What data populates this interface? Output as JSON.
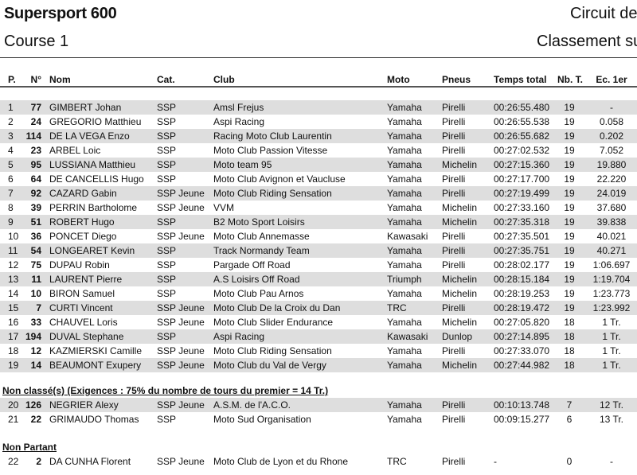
{
  "header": {
    "title": "Supersport 600",
    "circuit": "Circuit de",
    "course": "Course 1",
    "classement": "Classement sur"
  },
  "columns": [
    "P.",
    "N°",
    "Nom",
    "Cat.",
    "Club",
    "Moto",
    "Pneus",
    "Temps total",
    "Nb. T.",
    "Ec. 1er"
  ],
  "classified": [
    [
      "1",
      "77",
      "GIMBERT Johan",
      "SSP",
      "Amsl Frejus",
      "Yamaha",
      "Pirelli",
      "00:26:55.480",
      "19",
      "-"
    ],
    [
      "2",
      "24",
      "GREGORIO Matthieu",
      "SSP",
      "Aspi Racing",
      "Yamaha",
      "Pirelli",
      "00:26:55.538",
      "19",
      "0.058"
    ],
    [
      "3",
      "114",
      "DE LA VEGA Enzo",
      "SSP",
      "Racing Moto Club Laurentin",
      "Yamaha",
      "Pirelli",
      "00:26:55.682",
      "19",
      "0.202"
    ],
    [
      "4",
      "23",
      "ARBEL Loic",
      "SSP",
      "Moto Club Passion Vitesse",
      "Yamaha",
      "Pirelli",
      "00:27:02.532",
      "19",
      "7.052"
    ],
    [
      "5",
      "95",
      "LUSSIANA Matthieu",
      "SSP",
      "Moto team 95",
      "Yamaha",
      "Michelin",
      "00:27:15.360",
      "19",
      "19.880"
    ],
    [
      "6",
      "64",
      "DE CANCELLIS Hugo",
      "SSP",
      "Moto Club Avignon et Vaucluse",
      "Yamaha",
      "Pirelli",
      "00:27:17.700",
      "19",
      "22.220"
    ],
    [
      "7",
      "92",
      "CAZARD Gabin",
      "SSP Jeune",
      "Moto Club Riding Sensation",
      "Yamaha",
      "Pirelli",
      "00:27:19.499",
      "19",
      "24.019"
    ],
    [
      "8",
      "39",
      "PERRIN Bartholome",
      "SSP Jeune",
      "VVM",
      "Yamaha",
      "Michelin",
      "00:27:33.160",
      "19",
      "37.680"
    ],
    [
      "9",
      "51",
      "ROBERT Hugo",
      "SSP",
      "B2 Moto Sport Loisirs",
      "Yamaha",
      "Michelin",
      "00:27:35.318",
      "19",
      "39.838"
    ],
    [
      "10",
      "36",
      "PONCET Diego",
      "SSP Jeune",
      "Moto Club Annemasse",
      "Kawasaki",
      "Pirelli",
      "00:27:35.501",
      "19",
      "40.021"
    ],
    [
      "11",
      "54",
      "LONGEARET Kevin",
      "SSP",
      "Track Normandy Team",
      "Yamaha",
      "Pirelli",
      "00:27:35.751",
      "19",
      "40.271"
    ],
    [
      "12",
      "75",
      "DUPAU Robin",
      "SSP",
      "Pargade Off Road",
      "Yamaha",
      "Pirelli",
      "00:28:02.177",
      "19",
      "1:06.697"
    ],
    [
      "13",
      "11",
      "LAURENT Pierre",
      "SSP",
      "A.S Loisirs Off Road",
      "Triumph",
      "Michelin",
      "00:28:15.184",
      "19",
      "1:19.704"
    ],
    [
      "14",
      "10",
      "BIRON Samuel",
      "SSP",
      "Moto Club Pau Arnos",
      "Yamaha",
      "Michelin",
      "00:28:19.253",
      "19",
      "1:23.773"
    ],
    [
      "15",
      "7",
      "CURTI Vincent",
      "SSP Jeune",
      "Moto Club De la Croix du Dan",
      "TRC",
      "Pirelli",
      "00:28:19.472",
      "19",
      "1:23.992"
    ],
    [
      "16",
      "33",
      "CHAUVEL Loris",
      "SSP Jeune",
      "Moto Club Slider Endurance",
      "Yamaha",
      "Michelin",
      "00:27:05.820",
      "18",
      "1 Tr."
    ],
    [
      "17",
      "194",
      "DUVAL Stephane",
      "SSP",
      "Aspi Racing",
      "Kawasaki",
      "Dunlop",
      "00:27:14.895",
      "18",
      "1 Tr."
    ],
    [
      "18",
      "12",
      "KAZMIERSKI Camille",
      "SSP Jeune",
      "Moto Club Riding Sensation",
      "Yamaha",
      "Pirelli",
      "00:27:33.070",
      "18",
      "1 Tr."
    ],
    [
      "19",
      "14",
      "BEAUMONT Exupery",
      "SSP Jeune",
      "Moto Club du Val de Vergy",
      "Yamaha",
      "Michelin",
      "00:27:44.982",
      "18",
      "1 Tr."
    ]
  ],
  "non_classes": {
    "title": "Non classé(s) (Exigences : 75% du nombre de tours du premier = 14 Tr.)",
    "rows": [
      [
        "20",
        "126",
        "NEGRIER Alexy",
        "SSP Jeune",
        "A.S.M. de l'A.C.O.",
        "Yamaha",
        "Pirelli",
        "00:10:13.748",
        "7",
        "12 Tr."
      ],
      [
        "21",
        "22",
        "GRIMAUDO Thomas",
        "SSP",
        "Moto Sud Organisation",
        "Yamaha",
        "Pirelli",
        "00:09:15.277",
        "6",
        "13 Tr."
      ]
    ]
  },
  "non_partant": {
    "title": "Non Partant",
    "rows": [
      [
        "22",
        "2",
        "DA CUNHA Florent",
        "SSP Jeune",
        "Moto Club de Lyon et du Rhone",
        "TRC",
        "Pirelli",
        "-",
        "0",
        "-"
      ]
    ]
  },
  "colors": {
    "row_alt": "#dedede",
    "text": "#111111"
  }
}
